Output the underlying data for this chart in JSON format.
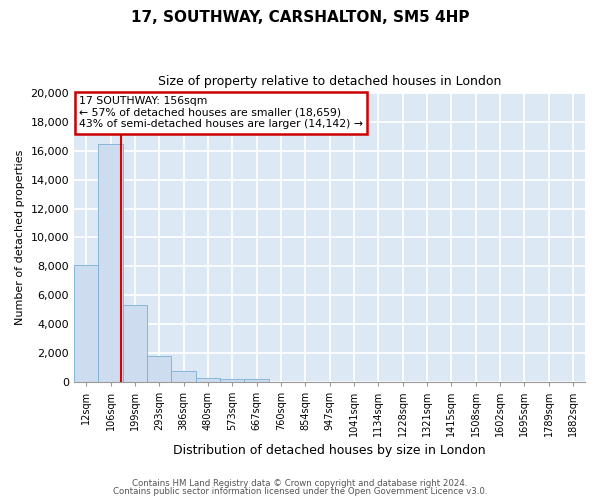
{
  "title_line1": "17, SOUTHWAY, CARSHALTON, SM5 4HP",
  "title_line2": "Size of property relative to detached houses in London",
  "xlabel": "Distribution of detached houses by size in London",
  "ylabel": "Number of detached properties",
  "bar_labels": [
    "12sqm",
    "106sqm",
    "199sqm",
    "293sqm",
    "386sqm",
    "480sqm",
    "573sqm",
    "667sqm",
    "760sqm",
    "854sqm",
    "947sqm",
    "1041sqm",
    "1134sqm",
    "1228sqm",
    "1321sqm",
    "1415sqm",
    "1508sqm",
    "1602sqm",
    "1695sqm",
    "1789sqm",
    "1882sqm"
  ],
  "bar_values": [
    8100,
    16500,
    5300,
    1800,
    750,
    270,
    200,
    175,
    0,
    0,
    0,
    0,
    0,
    0,
    0,
    0,
    0,
    0,
    0,
    0,
    0
  ],
  "bar_color": "#cddcee",
  "bar_edge_color": "#7bafd4",
  "bg_color": "#dde8f5",
  "grid_color": "#ffffff",
  "vline_color": "#dd0000",
  "vline_x": 1.42,
  "ylim": [
    0,
    20000
  ],
  "yticks": [
    0,
    2000,
    4000,
    6000,
    8000,
    10000,
    12000,
    14000,
    16000,
    18000,
    20000
  ],
  "annotation_title": "17 SOUTHWAY: 156sqm",
  "annotation_line1": "← 57% of detached houses are smaller (18,659)",
  "annotation_line2": "43% of semi-detached houses are larger (14,142) →",
  "annotation_box_color": "#ffffff",
  "annotation_box_edge": "#cc0000",
  "footer_line1": "Contains HM Land Registry data © Crown copyright and database right 2024.",
  "footer_line2": "Contains public sector information licensed under the Open Government Licence v3.0."
}
